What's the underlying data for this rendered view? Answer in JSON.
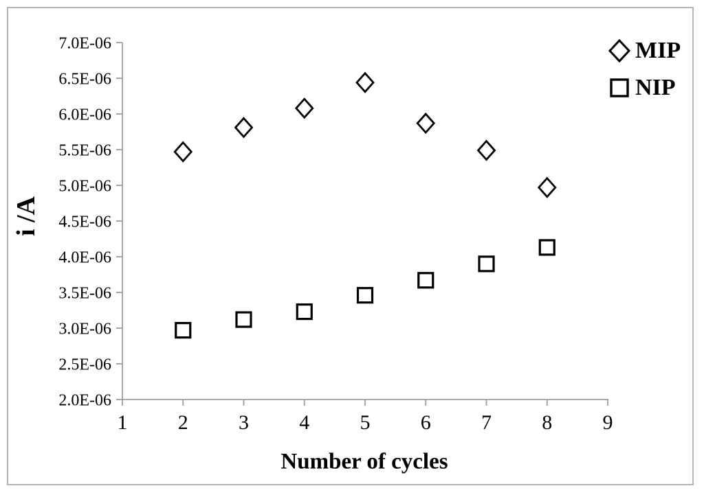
{
  "chart_data": {
    "type": "scatter",
    "title": "",
    "xlabel": "Number of cycles",
    "ylabel": "i /A",
    "x": [
      2,
      3,
      4,
      5,
      6,
      7,
      8
    ],
    "series": [
      {
        "name": "MIP",
        "marker": "diamond",
        "values": [
          5.47e-06,
          5.81e-06,
          6.08e-06,
          6.44e-06,
          5.87e-06,
          5.49e-06,
          4.97e-06
        ]
      },
      {
        "name": "NIP",
        "marker": "square",
        "values": [
          2.97e-06,
          3.12e-06,
          3.23e-06,
          3.46e-06,
          3.67e-06,
          3.9e-06,
          4.13e-06
        ]
      }
    ],
    "xlim": [
      1,
      9
    ],
    "ylim": [
      2e-06,
      7e-06
    ],
    "x_tick_labels": [
      "1",
      "2",
      "3",
      "4",
      "5",
      "6",
      "7",
      "8",
      "9"
    ],
    "y_tick_labels": [
      "2.0E-06",
      "2.5E-06",
      "3.0E-06",
      "3.5E-06",
      "4.0E-06",
      "4.5E-06",
      "5.0E-06",
      "5.5E-06",
      "6.0E-06",
      "6.5E-06",
      "7.0E-06"
    ],
    "grid": false,
    "legend_position": "top-right",
    "colors": {
      "marker": "#000000",
      "text": "#000000",
      "axis": "#9e9e9e",
      "figure_border": "#b5b5b5",
      "background": "#ffffff"
    }
  }
}
